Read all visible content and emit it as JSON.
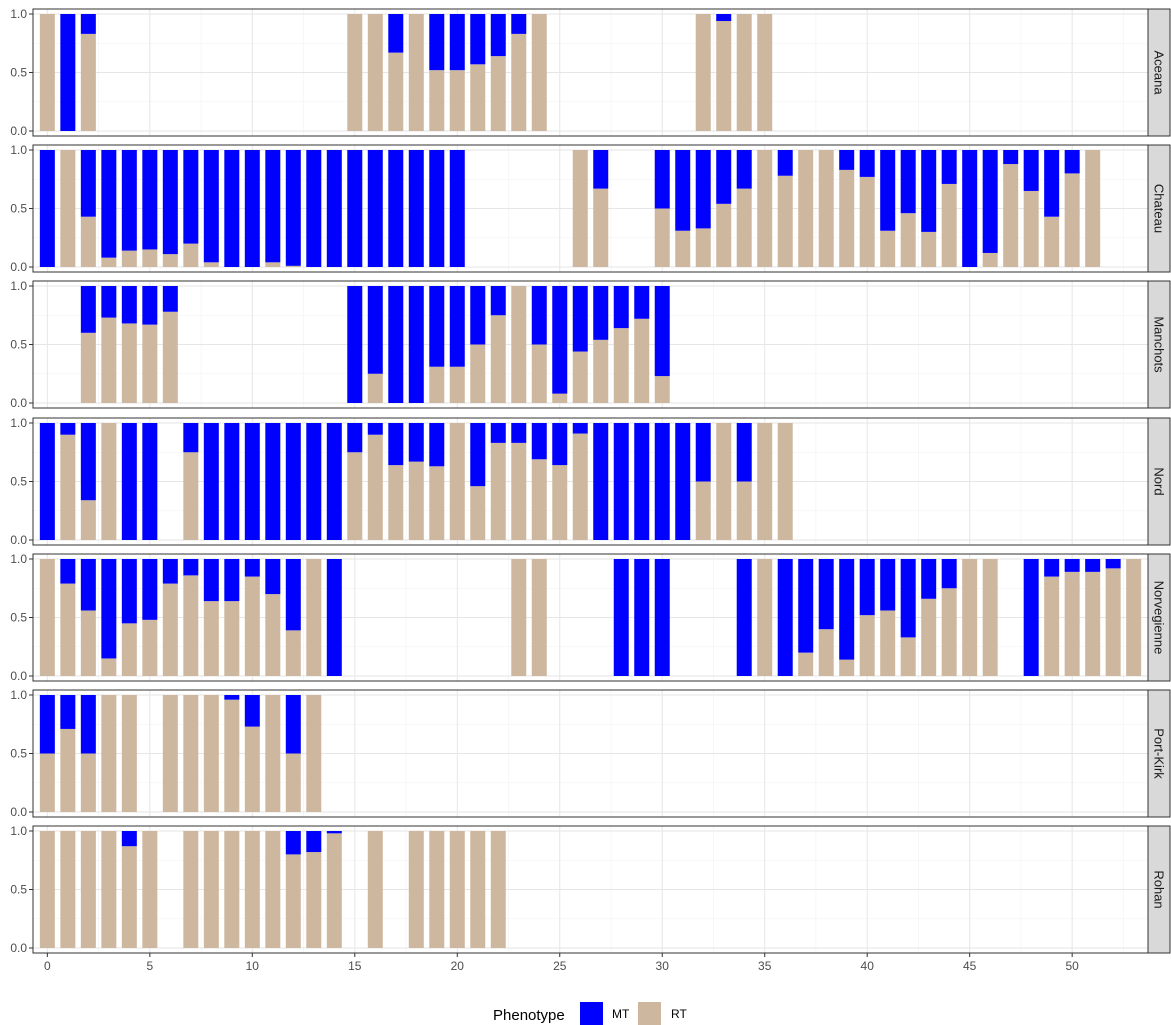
{
  "chart_data": {
    "type": "bar",
    "stacked": true,
    "x_ticks": [
      0,
      5,
      10,
      15,
      20,
      25,
      30,
      35,
      40,
      45,
      50
    ],
    "y_ticks": [
      "0.0",
      "0.5",
      "1.0"
    ],
    "xlim": [
      -0.7,
      53.7
    ],
    "ylim": [
      0,
      1
    ],
    "grid": true,
    "legend": {
      "title": "Phenotype",
      "position": "bottom",
      "entries": [
        {
          "key": "MT",
          "label": "MT",
          "color": "#0000ff"
        },
        {
          "key": "RT",
          "label": "RT",
          "color": "#cdb79e"
        }
      ]
    },
    "series_order": [
      "RT",
      "MT"
    ],
    "panels": [
      {
        "name": "Aceana",
        "bars": [
          {
            "x": 0,
            "rt": 1.0
          },
          {
            "x": 1,
            "rt": 0.0
          },
          {
            "x": 2,
            "rt": 0.83
          },
          {
            "x": 15,
            "rt": 1.0
          },
          {
            "x": 16,
            "rt": 1.0
          },
          {
            "x": 17,
            "rt": 0.67
          },
          {
            "x": 18,
            "rt": 1.0
          },
          {
            "x": 19,
            "rt": 0.52
          },
          {
            "x": 20,
            "rt": 0.52
          },
          {
            "x": 21,
            "rt": 0.57
          },
          {
            "x": 22,
            "rt": 0.64
          },
          {
            "x": 23,
            "rt": 0.83
          },
          {
            "x": 24,
            "rt": 1.0
          },
          {
            "x": 32,
            "rt": 1.0
          },
          {
            "x": 33,
            "rt": 0.94
          },
          {
            "x": 34,
            "rt": 1.0
          },
          {
            "x": 35,
            "rt": 1.0
          }
        ]
      },
      {
        "name": "Chateau",
        "bars": [
          {
            "x": 0,
            "rt": 0.0
          },
          {
            "x": 1,
            "rt": 1.0
          },
          {
            "x": 2,
            "rt": 0.43
          },
          {
            "x": 3,
            "rt": 0.08
          },
          {
            "x": 4,
            "rt": 0.14
          },
          {
            "x": 5,
            "rt": 0.15
          },
          {
            "x": 6,
            "rt": 0.11
          },
          {
            "x": 7,
            "rt": 0.2
          },
          {
            "x": 8,
            "rt": 0.04
          },
          {
            "x": 9,
            "rt": 0.0
          },
          {
            "x": 10,
            "rt": 0.0
          },
          {
            "x": 11,
            "rt": 0.04
          },
          {
            "x": 12,
            "rt": 0.01
          },
          {
            "x": 13,
            "rt": 0.0
          },
          {
            "x": 14,
            "rt": 0.0
          },
          {
            "x": 15,
            "rt": 0.0
          },
          {
            "x": 16,
            "rt": 0.0
          },
          {
            "x": 17,
            "rt": 0.0
          },
          {
            "x": 18,
            "rt": 0.0
          },
          {
            "x": 19,
            "rt": 0.0
          },
          {
            "x": 20,
            "rt": 0.0
          },
          {
            "x": 26,
            "rt": 1.0
          },
          {
            "x": 27,
            "rt": 0.67
          },
          {
            "x": 30,
            "rt": 0.5
          },
          {
            "x": 31,
            "rt": 0.31
          },
          {
            "x": 32,
            "rt": 0.33
          },
          {
            "x": 33,
            "rt": 0.54
          },
          {
            "x": 34,
            "rt": 0.67
          },
          {
            "x": 35,
            "rt": 1.0
          },
          {
            "x": 36,
            "rt": 0.78
          },
          {
            "x": 37,
            "rt": 1.0
          },
          {
            "x": 38,
            "rt": 1.0
          },
          {
            "x": 39,
            "rt": 0.83
          },
          {
            "x": 40,
            "rt": 0.77
          },
          {
            "x": 41,
            "rt": 0.31
          },
          {
            "x": 42,
            "rt": 0.46
          },
          {
            "x": 43,
            "rt": 0.3
          },
          {
            "x": 44,
            "rt": 0.71
          },
          {
            "x": 45,
            "rt": 0.0
          },
          {
            "x": 46,
            "rt": 0.12
          },
          {
            "x": 47,
            "rt": 0.88
          },
          {
            "x": 48,
            "rt": 0.65
          },
          {
            "x": 49,
            "rt": 0.43
          },
          {
            "x": 50,
            "rt": 0.8
          },
          {
            "x": 51,
            "rt": 1.0
          }
        ]
      },
      {
        "name": "Manchots",
        "bars": [
          {
            "x": 2,
            "rt": 0.6
          },
          {
            "x": 3,
            "rt": 0.73
          },
          {
            "x": 4,
            "rt": 0.68
          },
          {
            "x": 5,
            "rt": 0.67
          },
          {
            "x": 6,
            "rt": 0.78
          },
          {
            "x": 15,
            "rt": 0.0
          },
          {
            "x": 16,
            "rt": 0.25
          },
          {
            "x": 17,
            "rt": 0.0
          },
          {
            "x": 18,
            "rt": 0.0
          },
          {
            "x": 19,
            "rt": 0.31
          },
          {
            "x": 20,
            "rt": 0.31
          },
          {
            "x": 21,
            "rt": 0.5
          },
          {
            "x": 22,
            "rt": 0.75
          },
          {
            "x": 23,
            "rt": 1.0
          },
          {
            "x": 24,
            "rt": 0.5
          },
          {
            "x": 25,
            "rt": 0.08
          },
          {
            "x": 26,
            "rt": 0.44
          },
          {
            "x": 27,
            "rt": 0.54
          },
          {
            "x": 28,
            "rt": 0.64
          },
          {
            "x": 29,
            "rt": 0.72
          },
          {
            "x": 30,
            "rt": 0.23
          }
        ]
      },
      {
        "name": "Nord",
        "bars": [
          {
            "x": 0,
            "rt": 0.0
          },
          {
            "x": 1,
            "rt": 0.9
          },
          {
            "x": 2,
            "rt": 0.34
          },
          {
            "x": 3,
            "rt": 1.0
          },
          {
            "x": 4,
            "rt": 0.0
          },
          {
            "x": 5,
            "rt": 0.0
          },
          {
            "x": 7,
            "rt": 0.75
          },
          {
            "x": 8,
            "rt": 0.0
          },
          {
            "x": 9,
            "rt": 0.0
          },
          {
            "x": 10,
            "rt": 0.0
          },
          {
            "x": 11,
            "rt": 0.0
          },
          {
            "x": 12,
            "rt": 0.0
          },
          {
            "x": 13,
            "rt": 0.0
          },
          {
            "x": 14,
            "rt": 0.0
          },
          {
            "x": 15,
            "rt": 0.75
          },
          {
            "x": 16,
            "rt": 0.9
          },
          {
            "x": 17,
            "rt": 0.64
          },
          {
            "x": 18,
            "rt": 0.67
          },
          {
            "x": 19,
            "rt": 0.63
          },
          {
            "x": 20,
            "rt": 1.0
          },
          {
            "x": 21,
            "rt": 0.46
          },
          {
            "x": 22,
            "rt": 0.83
          },
          {
            "x": 23,
            "rt": 0.83
          },
          {
            "x": 24,
            "rt": 0.69
          },
          {
            "x": 25,
            "rt": 0.64
          },
          {
            "x": 26,
            "rt": 0.91
          },
          {
            "x": 27,
            "rt": 0.0
          },
          {
            "x": 28,
            "rt": 0.0
          },
          {
            "x": 29,
            "rt": 0.0
          },
          {
            "x": 30,
            "rt": 0.0
          },
          {
            "x": 31,
            "rt": 0.0
          },
          {
            "x": 32,
            "rt": 0.5
          },
          {
            "x": 33,
            "rt": 1.0
          },
          {
            "x": 34,
            "rt": 0.5
          },
          {
            "x": 35,
            "rt": 1.0
          },
          {
            "x": 36,
            "rt": 1.0
          }
        ]
      },
      {
        "name": "Norvegienne",
        "bars": [
          {
            "x": 0,
            "rt": 1.0
          },
          {
            "x": 1,
            "rt": 0.79
          },
          {
            "x": 2,
            "rt": 0.56
          },
          {
            "x": 3,
            "rt": 0.15
          },
          {
            "x": 4,
            "rt": 0.45
          },
          {
            "x": 5,
            "rt": 0.48
          },
          {
            "x": 6,
            "rt": 0.79
          },
          {
            "x": 7,
            "rt": 0.86
          },
          {
            "x": 8,
            "rt": 0.64
          },
          {
            "x": 9,
            "rt": 0.64
          },
          {
            "x": 10,
            "rt": 0.85
          },
          {
            "x": 11,
            "rt": 0.7
          },
          {
            "x": 12,
            "rt": 0.39
          },
          {
            "x": 13,
            "rt": 1.0
          },
          {
            "x": 14,
            "rt": 0.0
          },
          {
            "x": 23,
            "rt": 1.0
          },
          {
            "x": 24,
            "rt": 1.0
          },
          {
            "x": 28,
            "rt": 0.0
          },
          {
            "x": 29,
            "rt": 0.0
          },
          {
            "x": 30,
            "rt": 0.0
          },
          {
            "x": 34,
            "rt": 0.0
          },
          {
            "x": 35,
            "rt": 1.0
          },
          {
            "x": 36,
            "rt": 0.0
          },
          {
            "x": 37,
            "rt": 0.2
          },
          {
            "x": 38,
            "rt": 0.4
          },
          {
            "x": 39,
            "rt": 0.14
          },
          {
            "x": 40,
            "rt": 0.52
          },
          {
            "x": 41,
            "rt": 0.56
          },
          {
            "x": 42,
            "rt": 0.33
          },
          {
            "x": 43,
            "rt": 0.66
          },
          {
            "x": 44,
            "rt": 0.75
          },
          {
            "x": 45,
            "rt": 1.0
          },
          {
            "x": 46,
            "rt": 1.0
          },
          {
            "x": 48,
            "rt": 0.0
          },
          {
            "x": 49,
            "rt": 0.85
          },
          {
            "x": 50,
            "rt": 0.89
          },
          {
            "x": 51,
            "rt": 0.89
          },
          {
            "x": 52,
            "rt": 0.92
          },
          {
            "x": 53,
            "rt": 1.0
          }
        ]
      },
      {
        "name": "Port-Kirk",
        "bars": [
          {
            "x": 0,
            "rt": 0.5
          },
          {
            "x": 1,
            "rt": 0.71
          },
          {
            "x": 2,
            "rt": 0.5
          },
          {
            "x": 3,
            "rt": 1.0
          },
          {
            "x": 4,
            "rt": 1.0
          },
          {
            "x": 6,
            "rt": 1.0
          },
          {
            "x": 7,
            "rt": 1.0
          },
          {
            "x": 8,
            "rt": 1.0
          },
          {
            "x": 9,
            "rt": 0.96
          },
          {
            "x": 10,
            "rt": 0.73
          },
          {
            "x": 11,
            "rt": 1.0
          },
          {
            "x": 12,
            "rt": 0.5
          },
          {
            "x": 13,
            "rt": 1.0
          }
        ]
      },
      {
        "name": "Rohan",
        "bars": [
          {
            "x": 0,
            "rt": 1.0
          },
          {
            "x": 1,
            "rt": 1.0
          },
          {
            "x": 2,
            "rt": 1.0
          },
          {
            "x": 3,
            "rt": 1.0
          },
          {
            "x": 4,
            "rt": 0.87
          },
          {
            "x": 5,
            "rt": 1.0
          },
          {
            "x": 7,
            "rt": 1.0
          },
          {
            "x": 8,
            "rt": 1.0
          },
          {
            "x": 9,
            "rt": 1.0
          },
          {
            "x": 10,
            "rt": 1.0
          },
          {
            "x": 11,
            "rt": 1.0
          },
          {
            "x": 12,
            "rt": 0.8
          },
          {
            "x": 13,
            "rt": 0.82
          },
          {
            "x": 14,
            "rt": 0.98
          },
          {
            "x": 16,
            "rt": 1.0
          },
          {
            "x": 18,
            "rt": 1.0
          },
          {
            "x": 19,
            "rt": 1.0
          },
          {
            "x": 20,
            "rt": 1.0
          },
          {
            "x": 21,
            "rt": 1.0
          },
          {
            "x": 22,
            "rt": 1.0
          }
        ]
      }
    ]
  }
}
